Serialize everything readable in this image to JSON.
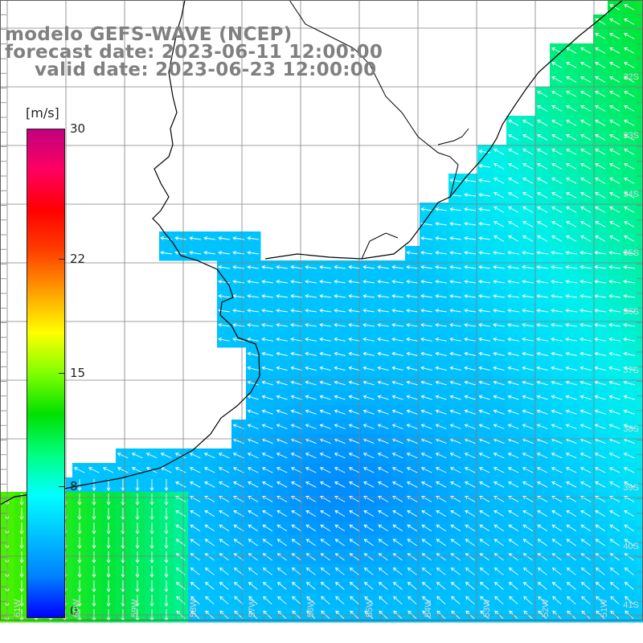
{
  "title": {
    "line1": "modelo GEFS-WAVE (NCEP)",
    "line2": "forecast date: 2023-06-11 12:00:00",
    "line3": "valid date: 2023-06-23 12:00:00"
  },
  "colorbar": {
    "unit": "[m/s]",
    "ticks": [
      "30",
      "22",
      "15",
      "8",
      "0"
    ],
    "tick_values": [
      30,
      22,
      15,
      8,
      0
    ],
    "range": [
      0,
      30
    ],
    "colors": [
      "#0000ff",
      "#0080ff",
      "#00c0ff",
      "#00ffff",
      "#00ff80",
      "#00e000",
      "#80ff00",
      "#ffff00",
      "#ffa000",
      "#ff4000",
      "#ff0000",
      "#ff0060",
      "#c00080"
    ]
  },
  "map": {
    "lat_labels": [
      "32S",
      "33S",
      "34S",
      "35S",
      "36S",
      "37S",
      "38S",
      "39S",
      "40S",
      "41S"
    ],
    "lon_labels": [
      "61W",
      "60W",
      "59W",
      "58W",
      "57W",
      "56W",
      "55W",
      "54W",
      "53W",
      "52W",
      "51W"
    ],
    "land_color": "#ffffff",
    "grid_color": "#808080",
    "coast_color": "#000000"
  }
}
